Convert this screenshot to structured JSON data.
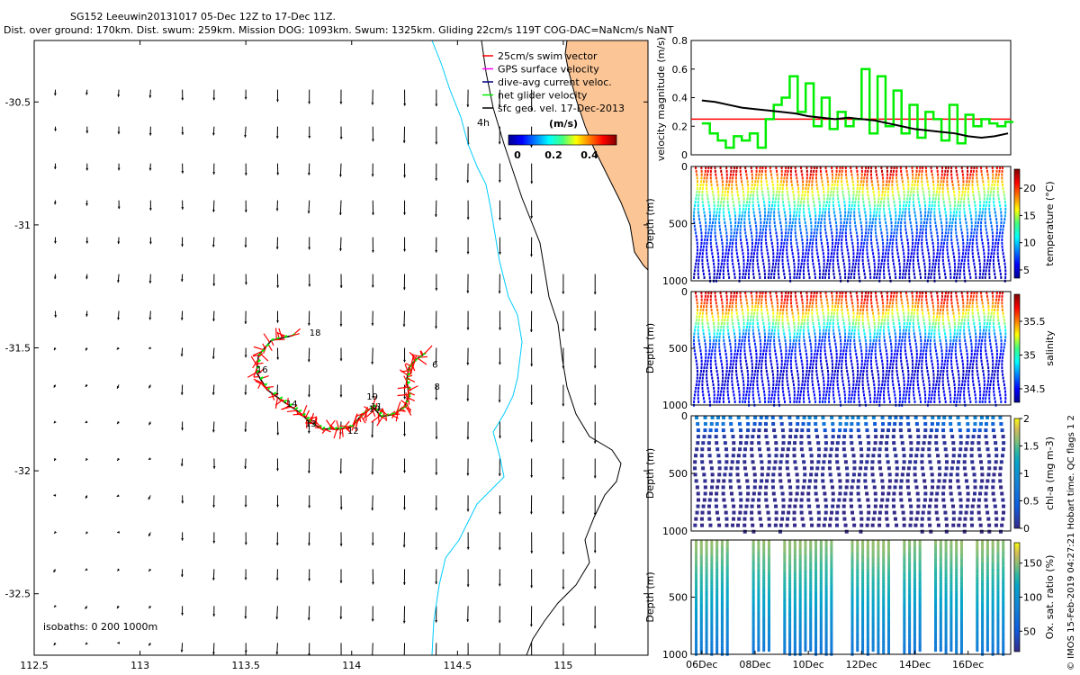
{
  "header": {
    "line1": "SG152 Leeuwin20131017 05-Dec 12Z to 17-Dec 11Z.",
    "line2": "Dist. over ground: 170km. Dist. swum: 259km. Mission DOG: 1093km. Swum: 1325km. Gliding 22cm/s 119T COG-DAC=NaNcm/s NaNT"
  },
  "credit": "© IMOS 15-Feb-2019 04:27:21 Hobart time. QC flags 1  2",
  "colors": {
    "land": "#fbc596",
    "coast": "#000000",
    "isobath200": "#00ccff",
    "track_red": "#ff0000",
    "net_green": "#00ee00",
    "speed_black": "#000000"
  },
  "chart_data": [
    {
      "id": "map",
      "type": "scatter",
      "title": "",
      "xlim": [
        112.5,
        115.4
      ],
      "ylim": [
        -32.75,
        -30.25
      ],
      "xticks": [
        "112.5",
        "113",
        "113.5",
        "114",
        "114.5",
        "115"
      ],
      "yticks": [
        "-30.5",
        "-31",
        "-31.5",
        "-32",
        "-32.5"
      ],
      "legend": {
        "items": [
          {
            "label": "25cm/s swim vector",
            "color": "#ff0000"
          },
          {
            "label": "GPS surface velocity",
            "color": "#ff00ff"
          },
          {
            "label": "dive-avg current veloc.",
            "color": "#000080"
          },
          {
            "label": "net glider velocity",
            "color": "#00ee00"
          },
          {
            "label": "sfc geo. vel. 17-Dec-2013",
            "color": "#000000"
          }
        ],
        "age_label": "4h",
        "colorbar_label": "(m/s)",
        "colorbar_ticks": [
          "0",
          "0.2",
          "0.4"
        ]
      },
      "isobath_label": "isobaths: 0   200  1000m",
      "track_day_labels": [
        {
          "text": "6",
          "lon": 114.38,
          "lat": -31.58
        },
        {
          "text": "8",
          "lon": 114.39,
          "lat": -31.67
        },
        {
          "text": "10",
          "lon": 114.08,
          "lat": -31.76
        },
        {
          "text": "11",
          "lon": 114.09,
          "lat": -31.75
        },
        {
          "text": "12",
          "lon": 113.98,
          "lat": -31.85
        },
        {
          "text": "13",
          "lon": 113.78,
          "lat": -31.82
        },
        {
          "text": "14",
          "lon": 113.69,
          "lat": -31.74
        },
        {
          "text": "16",
          "lon": 113.55,
          "lat": -31.6
        },
        {
          "text": "18",
          "lon": 113.8,
          "lat": -31.45
        },
        {
          "text": "19",
          "lon": 114.07,
          "lat": -31.71
        }
      ],
      "track": [
        [
          113.72,
          -31.45
        ],
        [
          113.62,
          -31.47
        ],
        [
          113.56,
          -31.53
        ],
        [
          113.55,
          -31.6
        ],
        [
          113.6,
          -31.67
        ],
        [
          113.68,
          -31.72
        ],
        [
          113.75,
          -31.76
        ],
        [
          113.8,
          -31.8
        ],
        [
          113.86,
          -31.83
        ],
        [
          113.94,
          -31.83
        ],
        [
          114.0,
          -31.82
        ],
        [
          114.05,
          -31.77
        ],
        [
          114.1,
          -31.74
        ],
        [
          114.14,
          -31.78
        ],
        [
          114.2,
          -31.77
        ],
        [
          114.25,
          -31.74
        ],
        [
          114.27,
          -31.69
        ],
        [
          114.26,
          -31.63
        ],
        [
          114.27,
          -31.58
        ],
        [
          114.3,
          -31.55
        ],
        [
          114.35,
          -31.52
        ]
      ]
    },
    {
      "id": "speed",
      "type": "line",
      "ylabel": "velocity magnitude (m/s)",
      "ylim": [
        0,
        0.8
      ],
      "yticks": [
        "0",
        "0.2",
        "0.4",
        "0.6",
        "0.8"
      ],
      "series": [
        {
          "name": "25cm/s reference",
          "color": "#ff0000",
          "values": [
            0.25
          ]
        },
        {
          "name": "sfc geo. vel.",
          "color": "#000000",
          "x": [
            6,
            6.5,
            7,
            7.5,
            8,
            8.5,
            9,
            9.5,
            10,
            10.5,
            11,
            11.5,
            12,
            12.5,
            13,
            13.5,
            14,
            14.5,
            15,
            15.5,
            16,
            16.5,
            17,
            17.5
          ],
          "values": [
            0.38,
            0.37,
            0.35,
            0.33,
            0.32,
            0.31,
            0.3,
            0.29,
            0.27,
            0.26,
            0.25,
            0.26,
            0.25,
            0.24,
            0.22,
            0.2,
            0.18,
            0.17,
            0.16,
            0.15,
            0.13,
            0.12,
            0.13,
            0.15
          ]
        },
        {
          "name": "net glider velocity",
          "color": "#00ee00",
          "x": [
            6,
            6.3,
            6.6,
            6.9,
            7.2,
            7.5,
            7.8,
            8.1,
            8.4,
            8.7,
            9.0,
            9.3,
            9.6,
            9.9,
            10.2,
            10.5,
            10.8,
            11.1,
            11.4,
            11.7,
            12.0,
            12.3,
            12.6,
            12.9,
            13.2,
            13.5,
            13.8,
            14.1,
            14.4,
            14.7,
            15.0,
            15.3,
            15.6,
            15.9,
            16.2,
            16.5,
            16.8,
            17.1,
            17.4
          ],
          "values": [
            0.22,
            0.15,
            0.1,
            0.05,
            0.13,
            0.1,
            0.15,
            0.05,
            0.25,
            0.35,
            0.4,
            0.55,
            0.3,
            0.5,
            0.2,
            0.4,
            0.18,
            0.3,
            0.2,
            0.25,
            0.6,
            0.15,
            0.55,
            0.2,
            0.45,
            0.15,
            0.35,
            0.12,
            0.3,
            0.25,
            0.1,
            0.35,
            0.08,
            0.28,
            0.2,
            0.25,
            0.22,
            0.2,
            0.23
          ]
        }
      ]
    },
    {
      "id": "temperature",
      "type": "heatmap",
      "ylabel": "Depth (m)",
      "ylim": [
        1000,
        0
      ],
      "yticks": [
        "0",
        "500",
        "1000"
      ],
      "colorbar_label": "temperature (°C)",
      "colorbar_range": [
        3.5,
        23.5
      ],
      "colorbar_ticks": [
        "5",
        "10",
        "15",
        "20"
      ],
      "profile_top": [
        [
          0,
          22
        ],
        [
          120,
          18
        ],
        [
          250,
          14
        ],
        [
          420,
          9
        ],
        [
          700,
          6
        ],
        [
          1000,
          4.5
        ]
      ]
    },
    {
      "id": "salinity",
      "type": "heatmap",
      "ylabel": "Depth (m)",
      "ylim": [
        1000,
        0
      ],
      "yticks": [
        "0",
        "500",
        "1000"
      ],
      "colorbar_label": "salinity",
      "colorbar_range": [
        34.3,
        35.9
      ],
      "colorbar_ticks": [
        "34.5",
        "35",
        "35.5"
      ],
      "profile_top": [
        [
          0,
          35.75
        ],
        [
          120,
          35.5
        ],
        [
          250,
          35.1
        ],
        [
          420,
          34.6
        ],
        [
          700,
          34.4
        ],
        [
          1000,
          34.55
        ]
      ]
    },
    {
      "id": "chla",
      "type": "scatter",
      "ylabel": "Depth (m)",
      "ylim": [
        1000,
        0
      ],
      "yticks": [
        "0",
        "500",
        "1000"
      ],
      "colorbar_label": "chl-a (mg m-3)",
      "colorbar_range": [
        0,
        2
      ],
      "colorbar_ticks": [
        "0",
        "0.5",
        "1",
        "1.5",
        "2"
      ],
      "profile_top": [
        [
          0,
          0.6
        ],
        [
          60,
          0.3
        ],
        [
          150,
          0.05
        ],
        [
          1000,
          0.0
        ]
      ]
    },
    {
      "id": "oxygen",
      "type": "scatter",
      "ylabel": "Depth (m)",
      "ylim": [
        1000,
        0
      ],
      "yticks": [
        "500",
        "1000"
      ],
      "xticks": [
        "06Dec",
        "08Dec",
        "10Dec",
        "12Dec",
        "14Dec",
        "16Dec"
      ],
      "xlim": [
        5.5,
        17.5
      ],
      "colorbar_label": "Ox. sat. ratio (%)",
      "colorbar_range": [
        20,
        180
      ],
      "colorbar_ticks": [
        "50",
        "100",
        "150"
      ],
      "profile_top": [
        [
          0,
          140
        ],
        [
          200,
          120
        ],
        [
          450,
          95
        ],
        [
          700,
          75
        ],
        [
          1000,
          60
        ]
      ]
    }
  ]
}
